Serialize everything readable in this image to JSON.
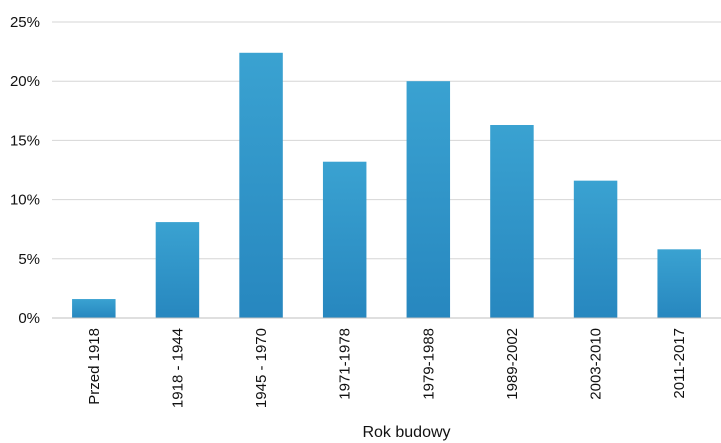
{
  "chart_data": {
    "type": "bar",
    "title": "",
    "xlabel": "Rok budowy",
    "ylabel": "",
    "categories": [
      "Przed 1918",
      "1918 - 1944",
      "1945 - 1970",
      "1971-1978",
      "1979-1988",
      "1989-2002",
      "2003-2010",
      "2011-2017"
    ],
    "values": [
      1.6,
      8.1,
      22.4,
      13.2,
      20.0,
      16.3,
      11.6,
      5.8
    ],
    "unit": "%",
    "ylim": [
      0,
      25
    ],
    "yticks": [
      "0%",
      "5%",
      "10%",
      "15%",
      "20%",
      "25%"
    ],
    "grid": true,
    "legend": "none",
    "colors": {
      "bar_top": "#3aa2d1",
      "bar_bottom": "#2787bf",
      "grid": "#d6d6d6",
      "axis": "#bfbfbf",
      "text": "#111111"
    }
  }
}
